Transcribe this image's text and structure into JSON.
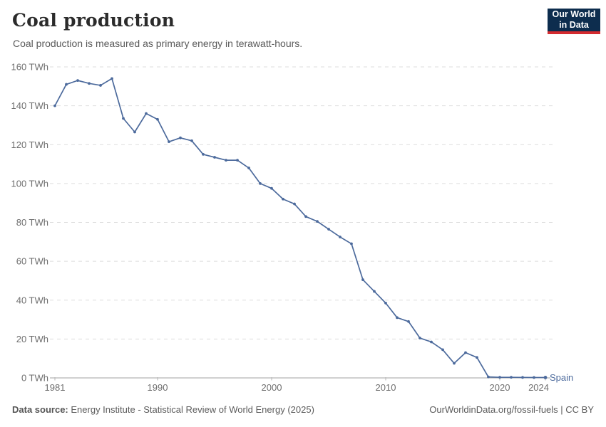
{
  "header": {
    "title": "Coal production",
    "subtitle": "Coal production is measured as primary energy in terawatt-hours."
  },
  "logo": {
    "line1": "Our World",
    "line2": "in Data",
    "bg_color": "#0d2d4e",
    "accent_color": "#d42b2f"
  },
  "chart_data": {
    "type": "line",
    "title": "Coal production",
    "unit": "TWh",
    "grid": "horizontal-dashed",
    "legend_position": "end-of-line",
    "xlim": [
      1981,
      2024
    ],
    "ylim": [
      0,
      160
    ],
    "y_ticks": [
      0,
      20,
      40,
      60,
      80,
      100,
      120,
      140,
      160
    ],
    "x_ticks": [
      1981,
      1990,
      2000,
      2010,
      2020,
      2024
    ],
    "series": [
      {
        "name": "Spain",
        "color": "#4C6A9C",
        "x": [
          1981,
          1982,
          1983,
          1984,
          1985,
          1986,
          1987,
          1988,
          1989,
          1990,
          1991,
          1992,
          1993,
          1994,
          1995,
          1996,
          1997,
          1998,
          1999,
          2000,
          2001,
          2002,
          2003,
          2004,
          2005,
          2006,
          2007,
          2008,
          2009,
          2010,
          2011,
          2012,
          2013,
          2014,
          2015,
          2016,
          2017,
          2018,
          2019,
          2020,
          2021,
          2022,
          2023,
          2024
        ],
        "values": [
          140,
          151,
          153,
          151.5,
          150.5,
          154,
          133.5,
          126.5,
          136,
          133,
          121.5,
          123.5,
          122,
          115,
          113.5,
          112,
          112,
          108,
          100,
          97.5,
          92,
          89.5,
          83,
          80.5,
          76.5,
          72.5,
          69,
          50.5,
          44.5,
          38.5,
          31,
          29,
          20.5,
          18.5,
          14.5,
          7.5,
          13,
          10.5,
          0.5,
          0.3,
          0.3,
          0.25,
          0.2,
          0.2
        ]
      }
    ]
  },
  "style": {
    "gridline_color": "#dddddd",
    "axis_color": "#a2a2a2",
    "tick_label_color": "#6e6e6e"
  },
  "footer": {
    "source_label": "Data source:",
    "source_text": "Energy Institute - Statistical Review of World Energy (2025)",
    "credit": "OurWorldinData.org/fossil-fuels | CC BY"
  }
}
